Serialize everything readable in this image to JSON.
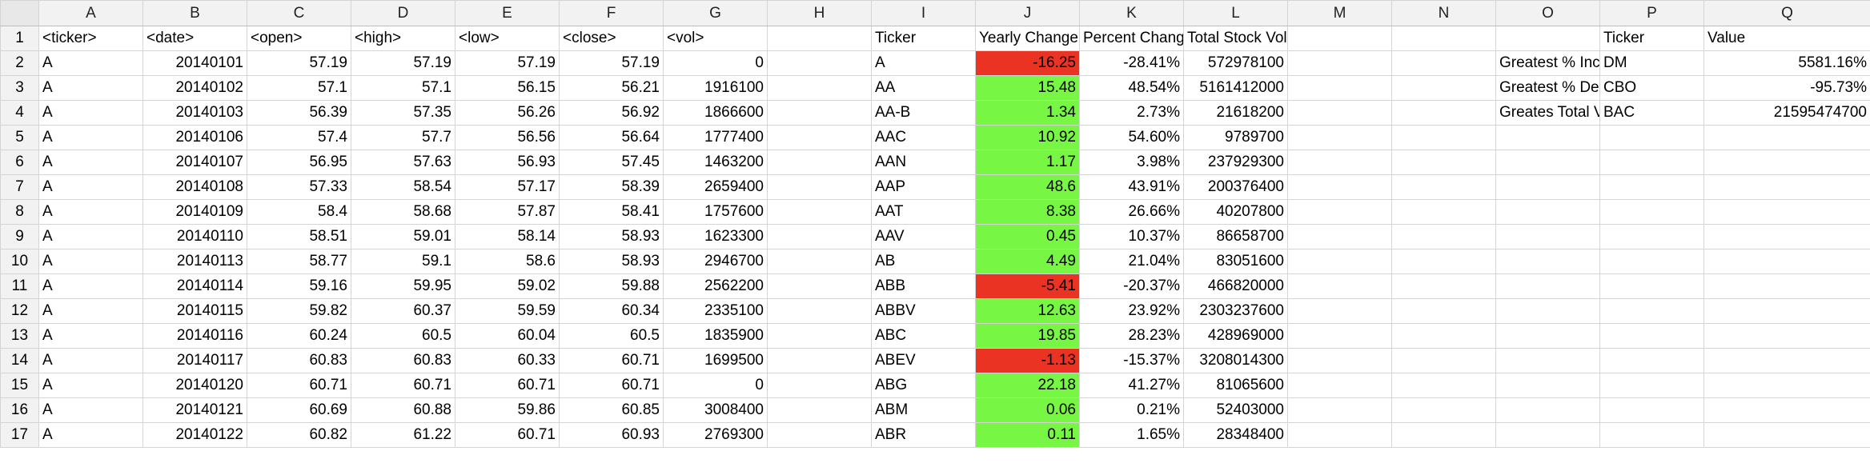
{
  "columns": [
    "A",
    "B",
    "C",
    "D",
    "E",
    "F",
    "G",
    "H",
    "I",
    "J",
    "K",
    "L",
    "M",
    "N",
    "O",
    "P",
    "Q"
  ],
  "rows": [
    {
      "n": "1",
      "A": "<ticker>",
      "B": "<date>",
      "C": "<open>",
      "D": "<high>",
      "E": "<low>",
      "F": "<close>",
      "G": "<vol>",
      "H": "",
      "I": "Ticker",
      "J": "Yearly Change",
      "K": "Percent Change",
      "L": "Total Stock Volume",
      "M": "",
      "N": "",
      "O": "",
      "P": "Ticker",
      "Q": "Value"
    },
    {
      "n": "2",
      "A": "A",
      "B": "20140101",
      "C": "57.19",
      "D": "57.19",
      "E": "57.19",
      "F": "57.19",
      "G": "0",
      "H": "",
      "I": "A",
      "J": "-16.25",
      "K": "-28.41%",
      "L": "572978100",
      "M": "",
      "N": "",
      "O": "Greatest % Increase",
      "P": "DM",
      "Q": "5581.16%"
    },
    {
      "n": "3",
      "A": "A",
      "B": "20140102",
      "C": "57.1",
      "D": "57.1",
      "E": "56.15",
      "F": "56.21",
      "G": "1916100",
      "H": "",
      "I": "AA",
      "J": "15.48",
      "K": "48.54%",
      "L": "5161412000",
      "M": "",
      "N": "",
      "O": "Greatest % Decrease",
      "P": "CBO",
      "Q": "-95.73%"
    },
    {
      "n": "4",
      "A": "A",
      "B": "20140103",
      "C": "56.39",
      "D": "57.35",
      "E": "56.26",
      "F": "56.92",
      "G": "1866600",
      "H": "",
      "I": "AA-B",
      "J": "1.34",
      "K": "2.73%",
      "L": "21618200",
      "M": "",
      "N": "",
      "O": "Greates Total Volume",
      "P": "BAC",
      "Q": "21595474700"
    },
    {
      "n": "5",
      "A": "A",
      "B": "20140106",
      "C": "57.4",
      "D": "57.7",
      "E": "56.56",
      "F": "56.64",
      "G": "1777400",
      "H": "",
      "I": "AAC",
      "J": "10.92",
      "K": "54.60%",
      "L": "9789700",
      "M": "",
      "N": "",
      "O": "",
      "P": "",
      "Q": ""
    },
    {
      "n": "6",
      "A": "A",
      "B": "20140107",
      "C": "56.95",
      "D": "57.63",
      "E": "56.93",
      "F": "57.45",
      "G": "1463200",
      "H": "",
      "I": "AAN",
      "J": "1.17",
      "K": "3.98%",
      "L": "237929300",
      "M": "",
      "N": "",
      "O": "",
      "P": "",
      "Q": ""
    },
    {
      "n": "7",
      "A": "A",
      "B": "20140108",
      "C": "57.33",
      "D": "58.54",
      "E": "57.17",
      "F": "58.39",
      "G": "2659400",
      "H": "",
      "I": "AAP",
      "J": "48.6",
      "K": "43.91%",
      "L": "200376400",
      "M": "",
      "N": "",
      "O": "",
      "P": "",
      "Q": ""
    },
    {
      "n": "8",
      "A": "A",
      "B": "20140109",
      "C": "58.4",
      "D": "58.68",
      "E": "57.87",
      "F": "58.41",
      "G": "1757600",
      "H": "",
      "I": "AAT",
      "J": "8.38",
      "K": "26.66%",
      "L": "40207800",
      "M": "",
      "N": "",
      "O": "",
      "P": "",
      "Q": ""
    },
    {
      "n": "9",
      "A": "A",
      "B": "20140110",
      "C": "58.51",
      "D": "59.01",
      "E": "58.14",
      "F": "58.93",
      "G": "1623300",
      "H": "",
      "I": "AAV",
      "J": "0.45",
      "K": "10.37%",
      "L": "86658700",
      "M": "",
      "N": "",
      "O": "",
      "P": "",
      "Q": ""
    },
    {
      "n": "10",
      "A": "A",
      "B": "20140113",
      "C": "58.77",
      "D": "59.1",
      "E": "58.6",
      "F": "58.93",
      "G": "2946700",
      "H": "",
      "I": "AB",
      "J": "4.49",
      "K": "21.04%",
      "L": "83051600",
      "M": "",
      "N": "",
      "O": "",
      "P": "",
      "Q": ""
    },
    {
      "n": "11",
      "A": "A",
      "B": "20140114",
      "C": "59.16",
      "D": "59.95",
      "E": "59.02",
      "F": "59.88",
      "G": "2562200",
      "H": "",
      "I": "ABB",
      "J": "-5.41",
      "K": "-20.37%",
      "L": "466820000",
      "M": "",
      "N": "",
      "O": "",
      "P": "",
      "Q": ""
    },
    {
      "n": "12",
      "A": "A",
      "B": "20140115",
      "C": "59.82",
      "D": "60.37",
      "E": "59.59",
      "F": "60.34",
      "G": "2335100",
      "H": "",
      "I": "ABBV",
      "J": "12.63",
      "K": "23.92%",
      "L": "2303237600",
      "M": "",
      "N": "",
      "O": "",
      "P": "",
      "Q": ""
    },
    {
      "n": "13",
      "A": "A",
      "B": "20140116",
      "C": "60.24",
      "D": "60.5",
      "E": "60.04",
      "F": "60.5",
      "G": "1835900",
      "H": "",
      "I": "ABC",
      "J": "19.85",
      "K": "28.23%",
      "L": "428969000",
      "M": "",
      "N": "",
      "O": "",
      "P": "",
      "Q": ""
    },
    {
      "n": "14",
      "A": "A",
      "B": "20140117",
      "C": "60.83",
      "D": "60.83",
      "E": "60.33",
      "F": "60.71",
      "G": "1699500",
      "H": "",
      "I": "ABEV",
      "J": "-1.13",
      "K": "-15.37%",
      "L": "3208014300",
      "M": "",
      "N": "",
      "O": "",
      "P": "",
      "Q": ""
    },
    {
      "n": "15",
      "A": "A",
      "B": "20140120",
      "C": "60.71",
      "D": "60.71",
      "E": "60.71",
      "F": "60.71",
      "G": "0",
      "H": "",
      "I": "ABG",
      "J": "22.18",
      "K": "41.27%",
      "L": "81065600",
      "M": "",
      "N": "",
      "O": "",
      "P": "",
      "Q": ""
    },
    {
      "n": "16",
      "A": "A",
      "B": "20140121",
      "C": "60.69",
      "D": "60.88",
      "E": "59.86",
      "F": "60.85",
      "G": "3008400",
      "H": "",
      "I": "ABM",
      "J": "0.06",
      "K": "0.21%",
      "L": "52403000",
      "M": "",
      "N": "",
      "O": "",
      "P": "",
      "Q": ""
    },
    {
      "n": "17",
      "A": "A",
      "B": "20140122",
      "C": "60.82",
      "D": "61.22",
      "E": "60.71",
      "F": "60.93",
      "G": "2769300",
      "H": "",
      "I": "ABR",
      "J": "0.11",
      "K": "1.65%",
      "L": "28348400",
      "M": "",
      "N": "",
      "O": "",
      "P": "",
      "Q": ""
    }
  ],
  "colors": {
    "positive": "#77f744",
    "negative": "#ea3323"
  }
}
